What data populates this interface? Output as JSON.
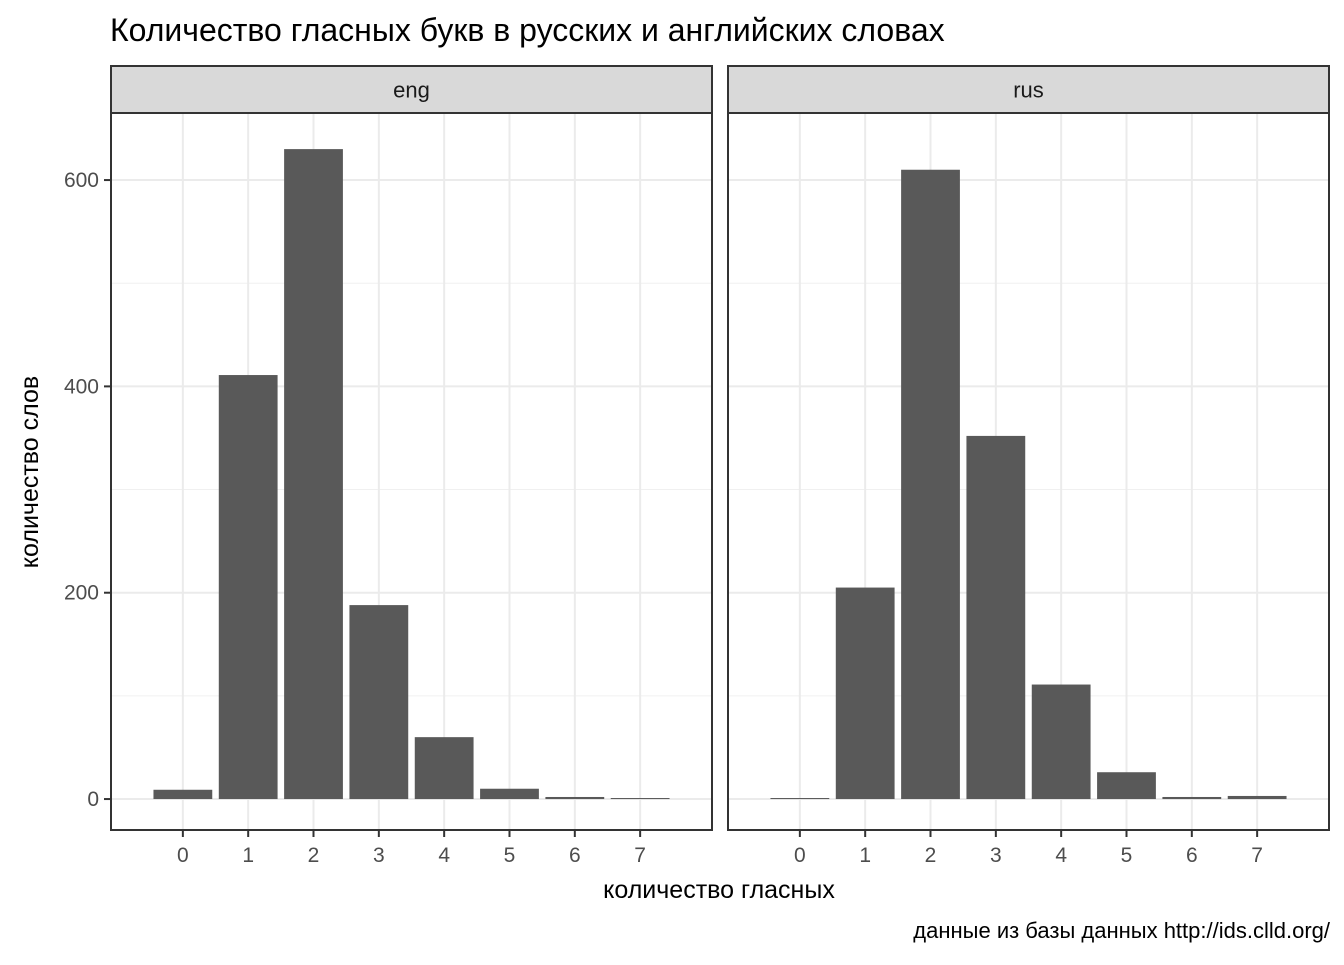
{
  "chart_data": {
    "type": "bar",
    "title": "Количество гласных букв в русских и английских словах",
    "xlabel": "количество гласных",
    "ylabel": "количество слов",
    "caption": "данные из базы данных http://ids.clld.org/",
    "categories": [
      "0",
      "1",
      "2",
      "3",
      "4",
      "5",
      "6",
      "7"
    ],
    "ylim": [
      -30,
      665
    ],
    "y_ticks": [
      0,
      200,
      400,
      600
    ],
    "y_tick_labels": [
      "0",
      "200",
      "400",
      "600"
    ],
    "grid": true,
    "bar_color": "#595959",
    "facets": [
      {
        "label": "eng",
        "values": [
          9,
          411,
          630,
          188,
          60,
          10,
          2,
          1
        ]
      },
      {
        "label": "rus",
        "values": [
          1,
          205,
          610,
          352,
          111,
          26,
          2,
          3
        ]
      }
    ]
  }
}
